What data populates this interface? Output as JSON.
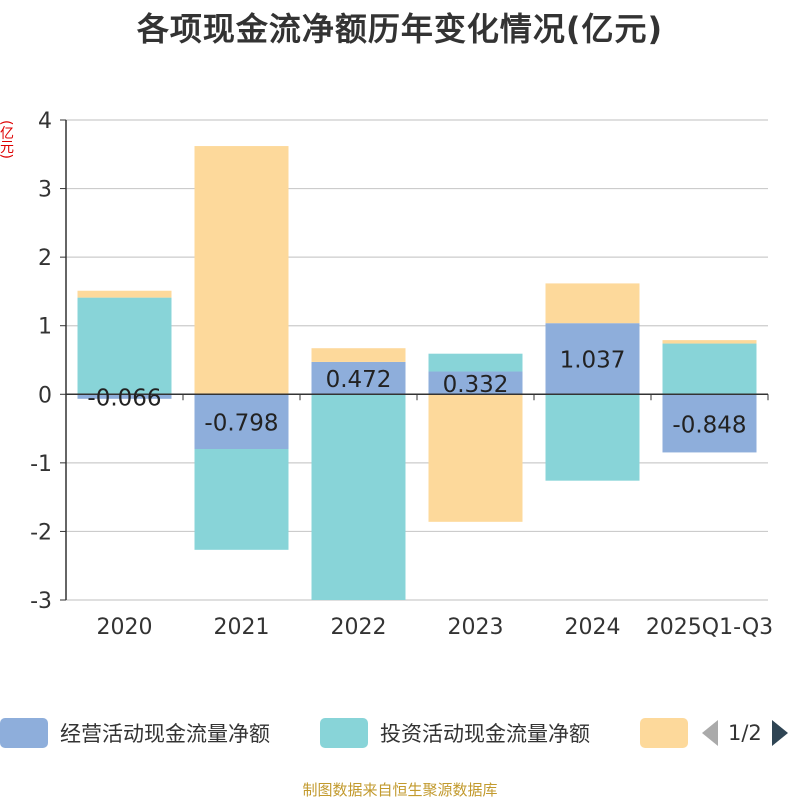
{
  "title": "各项现金流净额历年变化情况(亿元)",
  "unit_label": "(亿元)",
  "source": "制图数据来自恒生聚源数据库",
  "legend": {
    "page_text": "1/2",
    "items": [
      {
        "label": "经营活动现金流量净额",
        "color": "#8eaedb"
      },
      {
        "label": "投资活动现金流量净额",
        "color": "#88d4d8"
      },
      {
        "label": "",
        "color": "#fdd99b"
      }
    ]
  },
  "chart_data": {
    "type": "bar",
    "stacked": true,
    "categories": [
      "2020",
      "2021",
      "2022",
      "2023",
      "2024",
      "2025Q1-Q3"
    ],
    "ylim": [
      -3,
      4
    ],
    "yticks": [
      -3,
      -2,
      -1,
      0,
      1,
      2,
      3,
      4
    ],
    "grid": true,
    "series": [
      {
        "name": "经营活动现金流量净额",
        "color": "#8eaedb",
        "values": [
          -0.066,
          -0.798,
          0.472,
          0.332,
          1.037,
          -0.848
        ],
        "labels": [
          "-0.066",
          "-0.798",
          "0.472",
          "0.332",
          "1.037",
          "-0.848"
        ]
      },
      {
        "name": "投资活动现金流量净额",
        "color": "#88d4d8",
        "values": [
          1.41,
          -1.47,
          -3.0,
          0.26,
          -1.26,
          0.74
        ]
      },
      {
        "name": "",
        "color": "#fdd99b",
        "values": [
          0.1,
          3.62,
          0.2,
          -1.86,
          0.58,
          0.05
        ]
      }
    ]
  }
}
